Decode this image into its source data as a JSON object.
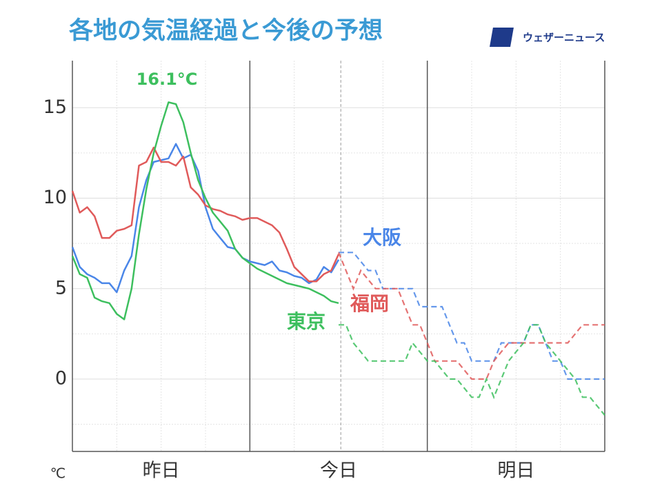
{
  "chart_data": {
    "type": "line",
    "title": "各地の気温経過と今後の予想",
    "brand": "ウェザーニュース",
    "y_unit": "℃",
    "max_label": "16.1°C",
    "xlim": [
      0,
      72
    ],
    "ylim": [
      -4,
      17.6
    ],
    "yticks": [
      0,
      5,
      10,
      15
    ],
    "y_minor_grid": [
      -2.5,
      2.5,
      7.5,
      12.5
    ],
    "xticks": [
      {
        "value": 12,
        "label": "昨日"
      },
      {
        "value": 36,
        "label": "今日"
      },
      {
        "value": 60,
        "label": "明日"
      }
    ],
    "day_lines": [
      24,
      48
    ],
    "x_minor_grid": [
      6,
      12,
      18,
      30,
      42,
      54,
      60,
      66
    ],
    "now": 36.3,
    "grid": true,
    "x": [
      0,
      1,
      2,
      3,
      4,
      5,
      6,
      7,
      8,
      9,
      10,
      11,
      12,
      13,
      14,
      15,
      16,
      17,
      18,
      19,
      20,
      21,
      22,
      23,
      24,
      25,
      26,
      27,
      28,
      29,
      30,
      31,
      32,
      33,
      34,
      35,
      36,
      37,
      38,
      39,
      40,
      41,
      42,
      43,
      44,
      45,
      46,
      47,
      48,
      49,
      50,
      51,
      52,
      53,
      54,
      55,
      56,
      57,
      58,
      59,
      60,
      61,
      62,
      63,
      64,
      65,
      66,
      67,
      68,
      69,
      70,
      71,
      72
    ],
    "series": [
      {
        "name": "大阪",
        "color": "#4a86e8",
        "values": [
          7.3,
          6.2,
          5.8,
          5.6,
          5.3,
          5.3,
          4.8,
          6.0,
          6.8,
          9.5,
          11.0,
          12.0,
          12.1,
          12.2,
          13.0,
          12.2,
          12.4,
          11.5,
          9.5,
          8.3,
          7.8,
          7.3,
          7.2,
          6.7,
          6.5,
          6.4,
          6.3,
          6.5,
          6.0,
          5.9,
          5.7,
          5.6,
          5.3,
          5.5,
          6.2,
          5.9,
          6.6,
          null,
          null,
          null,
          null,
          null,
          null,
          null,
          null,
          null,
          null,
          null,
          null,
          null,
          null,
          null,
          null,
          null,
          null,
          null,
          null,
          null,
          null,
          null,
          null,
          null,
          null,
          null,
          null,
          null,
          null,
          null,
          null,
          null,
          null,
          null,
          null
        ],
        "forecast": [
          null,
          null,
          null,
          null,
          null,
          null,
          null,
          null,
          null,
          null,
          null,
          null,
          null,
          null,
          null,
          null,
          null,
          null,
          null,
          null,
          null,
          null,
          null,
          null,
          null,
          null,
          null,
          null,
          null,
          null,
          null,
          null,
          null,
          null,
          null,
          null,
          7,
          7,
          7,
          6.5,
          6,
          6,
          5,
          5,
          5,
          5,
          5,
          4,
          4,
          4,
          4,
          3,
          2,
          2,
          1,
          1,
          1,
          1,
          2,
          2,
          2,
          2,
          3,
          3,
          2,
          1,
          1,
          0,
          0,
          0,
          0,
          0,
          0
        ]
      },
      {
        "name": "福岡",
        "color": "#e05a5a",
        "values": [
          10.4,
          9.2,
          9.5,
          9.0,
          7.8,
          7.8,
          8.2,
          8.3,
          8.5,
          11.8,
          12.0,
          12.8,
          12.0,
          12.0,
          11.8,
          12.3,
          10.6,
          10.2,
          9.6,
          9.4,
          9.3,
          9.1,
          9.0,
          8.8,
          8.9,
          8.9,
          8.7,
          8.5,
          8.1,
          7.2,
          6.2,
          5.8,
          5.4,
          5.4,
          5.8,
          6.0,
          6.9,
          null,
          null,
          null,
          null,
          null,
          null,
          null,
          null,
          null,
          null,
          null,
          null,
          null,
          null,
          null,
          null,
          null,
          null,
          null,
          null,
          null,
          null,
          null,
          null,
          null,
          null,
          null,
          null,
          null,
          null,
          null,
          null,
          null,
          null,
          null,
          null
        ],
        "forecast": [
          null,
          null,
          null,
          null,
          null,
          null,
          null,
          null,
          null,
          null,
          null,
          null,
          null,
          null,
          null,
          null,
          null,
          null,
          null,
          null,
          null,
          null,
          null,
          null,
          null,
          null,
          null,
          null,
          null,
          null,
          null,
          null,
          null,
          null,
          null,
          null,
          7,
          6,
          5,
          6,
          5.5,
          5,
          5,
          5,
          5,
          4,
          3,
          3,
          2,
          1,
          1,
          1,
          1,
          0.5,
          0,
          0,
          0,
          1,
          1.5,
          2,
          2,
          2,
          2,
          2,
          2,
          2,
          2,
          2,
          2.5,
          3,
          3,
          3,
          3
        ]
      },
      {
        "name": "東京",
        "color": "#3dbf5e",
        "values": [
          6.8,
          5.8,
          5.6,
          4.5,
          4.3,
          4.2,
          3.6,
          3.3,
          5.0,
          8.0,
          10.5,
          12.5,
          14.0,
          15.3,
          15.2,
          14.2,
          12.5,
          11.0,
          10.0,
          9.2,
          8.7,
          8.2,
          7.2,
          6.7,
          6.4,
          6.1,
          5.9,
          5.7,
          5.5,
          5.3,
          5.2,
          5.1,
          5.0,
          4.8,
          4.6,
          4.3,
          4.2,
          null,
          null,
          null,
          null,
          null,
          null,
          null,
          null,
          null,
          null,
          null,
          null,
          null,
          null,
          null,
          null,
          null,
          null,
          null,
          null,
          null,
          null,
          null,
          null,
          null,
          null,
          null,
          null,
          null,
          null,
          null,
          null,
          null,
          null,
          null,
          null
        ],
        "forecast": [
          null,
          null,
          null,
          null,
          null,
          null,
          null,
          null,
          null,
          null,
          null,
          null,
          null,
          null,
          null,
          null,
          null,
          null,
          null,
          null,
          null,
          null,
          null,
          null,
          null,
          null,
          null,
          null,
          null,
          null,
          null,
          null,
          null,
          null,
          null,
          null,
          3,
          3,
          2,
          1.5,
          1,
          1,
          1,
          1,
          1,
          1,
          2,
          1.5,
          1,
          1,
          0.5,
          0,
          0,
          -0.5,
          -1,
          -1,
          0,
          -1,
          0,
          1,
          1.5,
          2,
          3,
          3,
          2,
          1.5,
          1,
          0.5,
          0,
          -1,
          -1,
          -1.5,
          -2
        ]
      }
    ]
  }
}
